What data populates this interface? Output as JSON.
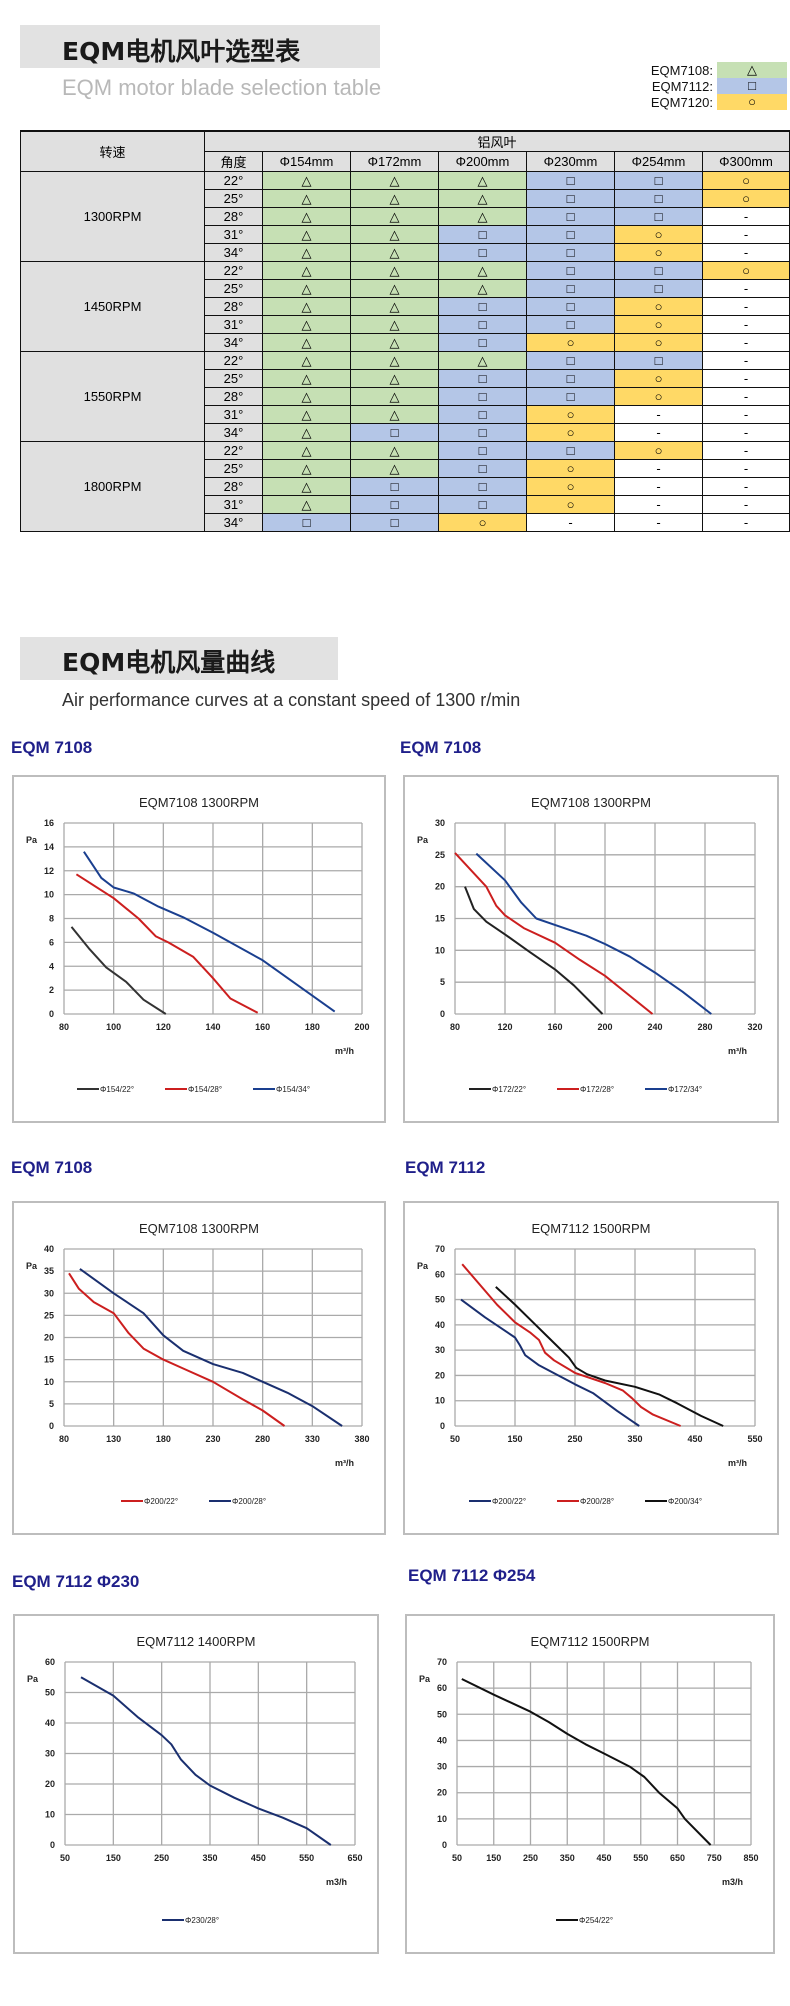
{
  "section1": {
    "title": "EQM电机风叶选型表",
    "subtitle": "EQM motor blade selection table"
  },
  "legend": [
    {
      "label": "EQM7108:",
      "symbol": "△",
      "color": "#c6e0b4"
    },
    {
      "label": "EQM7112:",
      "symbol": "□",
      "color": "#b4c6e7"
    },
    {
      "label": "EQM7120:",
      "symbol": "○",
      "color": "#ffd966"
    }
  ],
  "table": {
    "speed_header": "转速",
    "blade_header": "铝风叶",
    "angle_header": "角度",
    "columns": [
      "Φ154mm",
      "Φ172mm",
      "Φ200mm",
      "Φ230mm",
      "Φ254mm",
      "Φ300mm"
    ],
    "groups": [
      {
        "speed": "1300RPM",
        "rows": [
          {
            "angle": "22°",
            "cells": [
              "T",
              "T",
              "T",
              "S",
              "S",
              "C"
            ]
          },
          {
            "angle": "25°",
            "cells": [
              "T",
              "T",
              "T",
              "S",
              "S",
              "C"
            ]
          },
          {
            "angle": "28°",
            "cells": [
              "T",
              "T",
              "T",
              "S",
              "S",
              "-"
            ]
          },
          {
            "angle": "31°",
            "cells": [
              "T",
              "T",
              "S",
              "S",
              "C",
              "-"
            ]
          },
          {
            "angle": "34°",
            "cells": [
              "T",
              "T",
              "S",
              "S",
              "C",
              "-"
            ]
          }
        ]
      },
      {
        "speed": "1450RPM",
        "rows": [
          {
            "angle": "22°",
            "cells": [
              "T",
              "T",
              "T",
              "S",
              "S",
              "C"
            ]
          },
          {
            "angle": "25°",
            "cells": [
              "T",
              "T",
              "T",
              "S",
              "S",
              "-"
            ]
          },
          {
            "angle": "28°",
            "cells": [
              "T",
              "T",
              "S",
              "S",
              "C",
              "-"
            ]
          },
          {
            "angle": "31°",
            "cells": [
              "T",
              "T",
              "S",
              "S",
              "C",
              "-"
            ]
          },
          {
            "angle": "34°",
            "cells": [
              "T",
              "T",
              "S",
              "C",
              "C",
              "-"
            ]
          }
        ]
      },
      {
        "speed": "1550RPM",
        "rows": [
          {
            "angle": "22°",
            "cells": [
              "T",
              "T",
              "T",
              "S",
              "S",
              "-"
            ]
          },
          {
            "angle": "25°",
            "cells": [
              "T",
              "T",
              "S",
              "S",
              "C",
              "-"
            ]
          },
          {
            "angle": "28°",
            "cells": [
              "T",
              "T",
              "S",
              "S",
              "C",
              "-"
            ]
          },
          {
            "angle": "31°",
            "cells": [
              "T",
              "T",
              "S",
              "C",
              "-",
              "-"
            ]
          },
          {
            "angle": "34°",
            "cells": [
              "T",
              "S",
              "S",
              "C",
              "-",
              "-"
            ]
          }
        ]
      },
      {
        "speed": "1800RPM",
        "rows": [
          {
            "angle": "22°",
            "cells": [
              "T",
              "T",
              "S",
              "S",
              "C",
              "-"
            ]
          },
          {
            "angle": "25°",
            "cells": [
              "T",
              "T",
              "S",
              "C",
              "-",
              "-"
            ]
          },
          {
            "angle": "28°",
            "cells": [
              "T",
              "S",
              "S",
              "C",
              "-",
              "-"
            ]
          },
          {
            "angle": "31°",
            "cells": [
              "T",
              "S",
              "S",
              "C",
              "-",
              "-"
            ]
          },
          {
            "angle": "34°",
            "cells": [
              "S",
              "S",
              "C",
              "-",
              "-",
              "-"
            ]
          }
        ]
      }
    ]
  },
  "section2": {
    "title": "EQM电机风量曲线",
    "subtitle": "Air performance curves at a constant speed of 1300 r/min"
  },
  "chart_labels": [
    "EQM 7108",
    "EQM 7108",
    "EQM 7108",
    "EQM 7112",
    "EQM 7112 Φ230",
    "EQM 7112 Φ254"
  ],
  "chart_data": [
    {
      "type": "line",
      "title": "EQM7108  1300RPM",
      "ylabel": "Pa",
      "xlabel": "m³/h",
      "xlim": [
        80,
        200
      ],
      "xticks": [
        80,
        100,
        120,
        140,
        160,
        180,
        200
      ],
      "ylim": [
        0,
        16
      ],
      "yticks": [
        0,
        2,
        4,
        6,
        8,
        10,
        12,
        14,
        16
      ],
      "grid": true,
      "legend_position": "bottom",
      "series": [
        {
          "name": "Φ154/22°",
          "color": "#333333",
          "points": [
            [
              83,
              7.3
            ],
            [
              90,
              5.5
            ],
            [
              97,
              3.9
            ],
            [
              105,
              2.7
            ],
            [
              112,
              1.2
            ],
            [
              121,
              0
            ]
          ]
        },
        {
          "name": "Φ154/28°",
          "color": "#cc1f1f",
          "points": [
            [
              85,
              11.7
            ],
            [
              100,
              9.7
            ],
            [
              110,
              8
            ],
            [
              117,
              6.5
            ],
            [
              122,
              6
            ],
            [
              132,
              4.8
            ],
            [
              140,
              3
            ],
            [
              147,
              1.3
            ],
            [
              158,
              0.1
            ]
          ]
        },
        {
          "name": "Φ154/34°",
          "color": "#1a3f8f",
          "points": [
            [
              88,
              13.6
            ],
            [
              95,
              11.4
            ],
            [
              100,
              10.6
            ],
            [
              108,
              10.1
            ],
            [
              118,
              9
            ],
            [
              128,
              8.1
            ],
            [
              140,
              6.8
            ],
            [
              160,
              4.5
            ],
            [
              189,
              0.2
            ]
          ]
        }
      ]
    },
    {
      "type": "line",
      "title": "EQM7108  1300RPM",
      "ylabel": "Pa",
      "xlabel": "m³/h",
      "xlim": [
        80,
        320
      ],
      "xticks": [
        80,
        120,
        160,
        200,
        240,
        280,
        320
      ],
      "ylim": [
        0,
        30
      ],
      "yticks": [
        0,
        5,
        10,
        15,
        20,
        25,
        30
      ],
      "grid": true,
      "legend_position": "bottom",
      "series": [
        {
          "name": "Φ172/22°",
          "color": "#222222",
          "points": [
            [
              88,
              20
            ],
            [
              95,
              16.5
            ],
            [
              105,
              14.5
            ],
            [
              120,
              12.5
            ],
            [
              140,
              9.7
            ],
            [
              160,
              7
            ],
            [
              175,
              4.5
            ],
            [
              198,
              0
            ]
          ]
        },
        {
          "name": "Φ172/28°",
          "color": "#cc1f1f",
          "points": [
            [
              80,
              25.3
            ],
            [
              105,
              20
            ],
            [
              113,
              17
            ],
            [
              120,
              15.5
            ],
            [
              135,
              13.5
            ],
            [
              160,
              11.2
            ],
            [
              180,
              8.5
            ],
            [
              200,
              6
            ],
            [
              238,
              0
            ]
          ]
        },
        {
          "name": "Φ172/34°",
          "color": "#1a3f8f",
          "points": [
            [
              97,
              25.2
            ],
            [
              120,
              21
            ],
            [
              133,
              17.5
            ],
            [
              145,
              15
            ],
            [
              160,
              14
            ],
            [
              185,
              12.3
            ],
            [
              200,
              11
            ],
            [
              220,
              9
            ],
            [
              240,
              6.5
            ],
            [
              262,
              3.5
            ],
            [
              285,
              0
            ]
          ]
        }
      ]
    },
    {
      "type": "line",
      "title": "EQM7108  1300RPM",
      "ylabel": "Pa",
      "xlabel": "m³/h",
      "xlim": [
        80,
        380
      ],
      "xticks": [
        80,
        130,
        180,
        230,
        280,
        330,
        380
      ],
      "ylim": [
        0,
        40
      ],
      "yticks": [
        0,
        5,
        10,
        15,
        20,
        25,
        30,
        35,
        40
      ],
      "grid": true,
      "legend_position": "bottom",
      "series": [
        {
          "name": "Φ200/22°",
          "color": "#cc1f1f",
          "points": [
            [
              85,
              34.5
            ],
            [
              95,
              31
            ],
            [
              110,
              28
            ],
            [
              130,
              25.5
            ],
            [
              145,
              21
            ],
            [
              160,
              17.5
            ],
            [
              180,
              15
            ],
            [
              200,
              13
            ],
            [
              230,
              10
            ],
            [
              260,
              6
            ],
            [
              280,
              3.5
            ],
            [
              302,
              0
            ]
          ]
        },
        {
          "name": "Φ200/28°",
          "color": "#1a2f6f",
          "points": [
            [
              96,
              35.5
            ],
            [
              130,
              30
            ],
            [
              160,
              25.5
            ],
            [
              180,
              20.5
            ],
            [
              200,
              17
            ],
            [
              230,
              14
            ],
            [
              260,
              12
            ],
            [
              280,
              10
            ],
            [
              305,
              7.5
            ],
            [
              330,
              4.5
            ],
            [
              360,
              0
            ]
          ]
        }
      ]
    },
    {
      "type": "line",
      "title": "EQM7112  1500RPM",
      "ylabel": "Pa",
      "xlabel": "m³/h",
      "xlim": [
        50,
        550
      ],
      "xticks": [
        50,
        150,
        250,
        350,
        450,
        550
      ],
      "ylim": [
        0,
        70
      ],
      "yticks": [
        0,
        10,
        20,
        30,
        40,
        50,
        60,
        70
      ],
      "grid": true,
      "legend_position": "bottom",
      "series": [
        {
          "name": "Φ200/22°",
          "color": "#1a2f6f",
          "points": [
            [
              60,
              50
            ],
            [
              100,
              43
            ],
            [
              150,
              35
            ],
            [
              158,
              32
            ],
            [
              167,
              28
            ],
            [
              190,
              24
            ],
            [
              250,
              16.5
            ],
            [
              280,
              13
            ],
            [
              320,
              6
            ],
            [
              357,
              0
            ]
          ]
        },
        {
          "name": "Φ200/28°",
          "color": "#cc1f1f",
          "points": [
            [
              62,
              64
            ],
            [
              120,
              48
            ],
            [
              150,
              41
            ],
            [
              175,
              37
            ],
            [
              190,
              34
            ],
            [
              200,
              29
            ],
            [
              215,
              26
            ],
            [
              250,
              21
            ],
            [
              300,
              17
            ],
            [
              330,
              14
            ],
            [
              345,
              11
            ],
            [
              360,
              7.5
            ],
            [
              380,
              4.5
            ],
            [
              426,
              0
            ]
          ]
        },
        {
          "name": "Φ200/34°",
          "color": "#111111",
          "points": [
            [
              118,
              55
            ],
            [
              150,
              48
            ],
            [
              180,
              41
            ],
            [
              210,
              34
            ],
            [
              240,
              27
            ],
            [
              252,
              23
            ],
            [
              270,
              20.5
            ],
            [
              300,
              18
            ],
            [
              350,
              15.5
            ],
            [
              390,
              12.5
            ],
            [
              420,
              9
            ],
            [
              460,
              4
            ],
            [
              497,
              0
            ]
          ]
        }
      ]
    },
    {
      "type": "line",
      "title": "EQM7112  1400RPM",
      "ylabel": "Pa",
      "xlabel": "m3/h",
      "xlim": [
        50,
        650
      ],
      "xticks": [
        50,
        150,
        250,
        350,
        450,
        550,
        650
      ],
      "ylim": [
        0,
        60
      ],
      "yticks": [
        0,
        10,
        20,
        30,
        40,
        50,
        60
      ],
      "grid": true,
      "legend_position": "bottom",
      "series": [
        {
          "name": "Φ230/28°",
          "color": "#1a2f6f",
          "points": [
            [
              83,
              55
            ],
            [
              150,
              49
            ],
            [
              200,
              42
            ],
            [
              250,
              36
            ],
            [
              270,
              33
            ],
            [
              290,
              28
            ],
            [
              320,
              23
            ],
            [
              350,
              19.5
            ],
            [
              400,
              15.5
            ],
            [
              450,
              12
            ],
            [
              500,
              9
            ],
            [
              550,
              5.5
            ],
            [
              600,
              0
            ]
          ]
        }
      ]
    },
    {
      "type": "line",
      "title": "EQM7112  1500RPM",
      "ylabel": "Pa",
      "xlabel": "m3/h",
      "xlim": [
        50,
        850
      ],
      "xticks": [
        50,
        150,
        250,
        350,
        450,
        550,
        650,
        750,
        850
      ],
      "ylim": [
        0,
        70
      ],
      "yticks": [
        0,
        10,
        20,
        30,
        40,
        50,
        60,
        70
      ],
      "grid": true,
      "legend_position": "bottom",
      "series": [
        {
          "name": "Φ254/22°",
          "color": "#111111",
          "points": [
            [
              63,
              63.5
            ],
            [
              150,
              57.5
            ],
            [
              250,
              51
            ],
            [
              300,
              47
            ],
            [
              350,
              42.5
            ],
            [
              400,
              38.5
            ],
            [
              450,
              35
            ],
            [
              520,
              30
            ],
            [
              560,
              26
            ],
            [
              600,
              20
            ],
            [
              650,
              14
            ],
            [
              670,
              10
            ],
            [
              740,
              0
            ]
          ]
        }
      ]
    }
  ]
}
